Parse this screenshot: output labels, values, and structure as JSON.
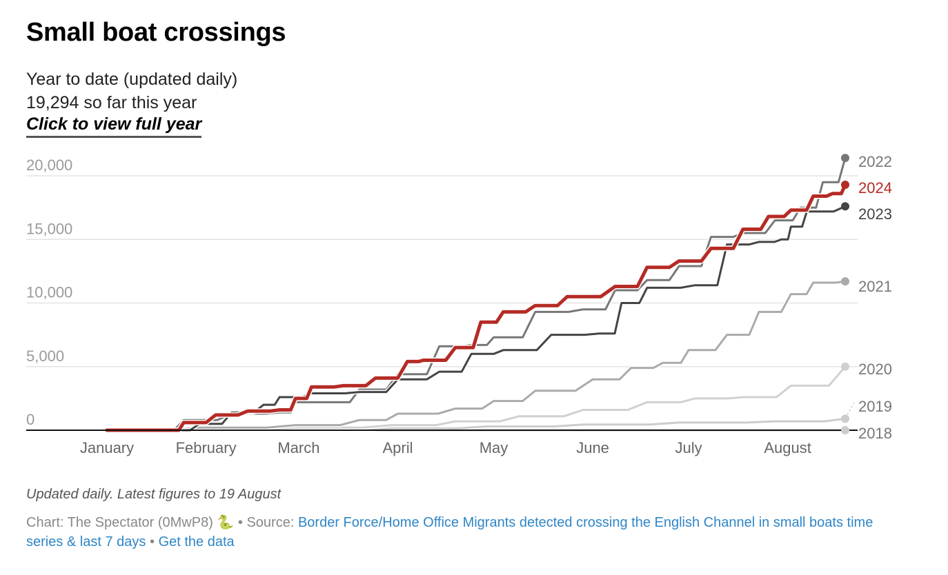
{
  "header": {
    "title": "Small boat crossings",
    "subtitle_line1": "Year to date (updated daily)",
    "subtitle_line2": "19,294 so far this year",
    "full_year_link": "Click to view full year"
  },
  "footer": {
    "notes": "Updated daily. Latest figures to 19 August",
    "credit": "Chart: The Spectator (0MwP8)",
    "credit_emoji": "🐍",
    "separator": "•",
    "source_label": "Source:",
    "source_link": "Border Force/Home Office Migrants detected crossing the English Channel in small boats time series & last 7 days",
    "get_data_link": "Get the data"
  },
  "chart_data": {
    "type": "line",
    "title": "Small boat crossings",
    "subtitle": "Year to date (updated daily)",
    "xlabel": "",
    "ylabel": "",
    "x_unit": "day of year",
    "xlim": [
      1,
      232
    ],
    "ylim": [
      0,
      20000
    ],
    "grid": true,
    "yticks": [
      0,
      5000,
      10000,
      15000,
      20000
    ],
    "ytick_labels": [
      "0",
      "5,000",
      "10,000",
      "15,000",
      "20,000"
    ],
    "xticks": [
      1,
      32,
      61,
      92,
      122,
      153,
      183,
      214
    ],
    "xtick_labels": [
      "January",
      "February",
      "March",
      "April",
      "May",
      "June",
      "July",
      "August"
    ],
    "legend": "direct-labels-right",
    "series": [
      {
        "name": "2018",
        "color": "#cccccc",
        "width": 3,
        "x": [
          1,
          232
        ],
        "values": [
          0,
          0
        ]
      },
      {
        "name": "2019",
        "color": "#cccccc",
        "width": 3,
        "x": [
          1,
          30,
          60,
          90,
          120,
          150,
          180,
          210,
          232
        ],
        "values": [
          0,
          20,
          50,
          150,
          300,
          450,
          600,
          700,
          900
        ]
      },
      {
        "name": "2020",
        "color": "#d0d0d0",
        "width": 3,
        "x": [
          1,
          30,
          60,
          90,
          110,
          130,
          150,
          170,
          185,
          200,
          215,
          232
        ],
        "values": [
          0,
          100,
          200,
          400,
          700,
          1100,
          1600,
          2200,
          2500,
          2600,
          3500,
          5000
        ]
      },
      {
        "name": "2021",
        "color": "#aaaaaa",
        "width": 3,
        "x": [
          1,
          30,
          60,
          80,
          92,
          110,
          122,
          135,
          153,
          165,
          175,
          183,
          195,
          205,
          215,
          222,
          232
        ],
        "values": [
          0,
          200,
          400,
          800,
          1300,
          1700,
          2300,
          3100,
          4000,
          4900,
          5300,
          6300,
          7500,
          9300,
          10700,
          11600,
          11700
        ]
      },
      {
        "name": "2022",
        "color": "#777777",
        "width": 3,
        "x": [
          1,
          15,
          25,
          40,
          55,
          60,
          70,
          80,
          92,
          105,
          115,
          122,
          135,
          150,
          160,
          170,
          180,
          190,
          200,
          210,
          218,
          225,
          232
        ],
        "values": [
          0,
          0,
          800,
          1300,
          1400,
          2200,
          2200,
          3200,
          4400,
          6600,
          6700,
          7300,
          9300,
          9500,
          11000,
          11800,
          12900,
          15200,
          15500,
          16500,
          17500,
          19500,
          21400
        ]
      },
      {
        "name": "2023",
        "color": "#444444",
        "width": 3,
        "x": [
          1,
          20,
          30,
          40,
          50,
          55,
          65,
          80,
          92,
          105,
          115,
          125,
          140,
          155,
          162,
          170,
          185,
          195,
          205,
          212,
          215,
          220,
          232
        ],
        "values": [
          0,
          0,
          500,
          1400,
          2000,
          2600,
          2900,
          3000,
          4000,
          4600,
          6000,
          6300,
          7500,
          7600,
          10000,
          11200,
          11400,
          14600,
          14800,
          15000,
          16000,
          17200,
          17600
        ]
      },
      {
        "name": "2024",
        "color": "#b52b25",
        "width": 5,
        "x": [
          1,
          10,
          20,
          25,
          35,
          45,
          55,
          60,
          65,
          75,
          85,
          95,
          100,
          110,
          118,
          125,
          135,
          145,
          160,
          170,
          180,
          190,
          200,
          208,
          215,
          222,
          228,
          232
        ],
        "values": [
          0,
          0,
          0,
          600,
          1200,
          1500,
          1600,
          2500,
          3400,
          3500,
          4100,
          5400,
          5500,
          6500,
          8500,
          9300,
          9800,
          10500,
          11300,
          12800,
          13300,
          14300,
          15800,
          16800,
          17300,
          18400,
          18600,
          19294
        ]
      }
    ]
  }
}
